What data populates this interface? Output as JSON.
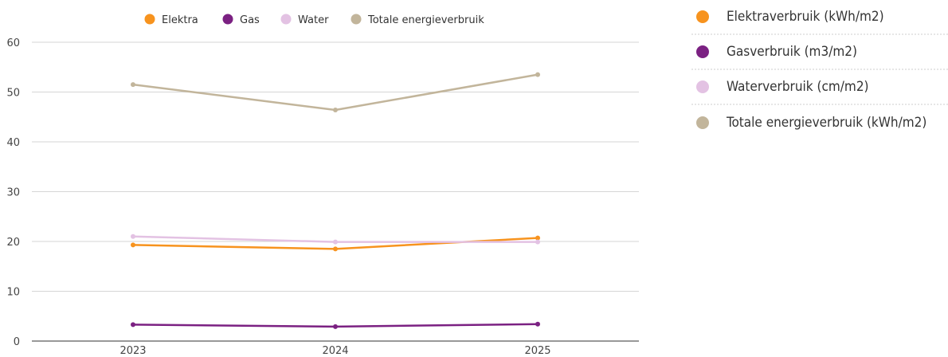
{
  "chart_data": {
    "type": "line",
    "categories": [
      "2023",
      "2024",
      "2025"
    ],
    "series": [
      {
        "name": "Elektra",
        "color": "#f7931e",
        "values": [
          19.3,
          18.5,
          20.7
        ]
      },
      {
        "name": "Gas",
        "color": "#7b2182",
        "values": [
          3.3,
          2.9,
          3.4
        ]
      },
      {
        "name": "Water",
        "color": "#e3c2e3",
        "values": [
          21.0,
          19.9,
          19.9
        ]
      },
      {
        "name": "Totale energieverbruik",
        "color": "#c2b59b",
        "values": [
          51.5,
          46.4,
          53.5
        ]
      }
    ],
    "ylim": [
      0,
      60
    ],
    "yticks": [
      0,
      10,
      20,
      30,
      40,
      50,
      60
    ],
    "grid": true,
    "legend_position": "top"
  },
  "side_legend": [
    {
      "label": "Elektraverbruik (kWh/m2)",
      "color": "#f7931e"
    },
    {
      "label": "Gasverbruik (m3/m2)",
      "color": "#7b2182"
    },
    {
      "label": "Waterverbruik (cm/m2)",
      "color": "#e3c2e3"
    },
    {
      "label": "Totale energieverbruik (kWh/m2)",
      "color": "#c2b59b"
    }
  ]
}
